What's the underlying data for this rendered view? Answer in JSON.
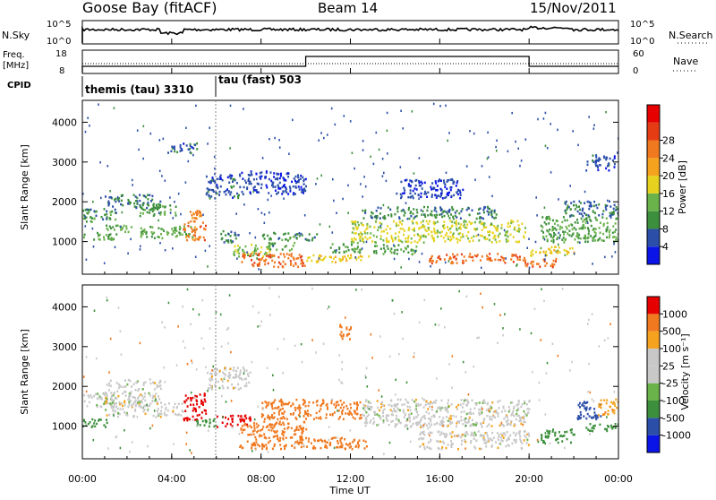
{
  "header": {
    "station": "Goose Bay (fitACF)",
    "beam": "Beam 14",
    "date": "15/Nov/2011"
  },
  "time_axis": {
    "label": "Time UT",
    "ticks": [
      "00:00",
      "04:00",
      "08:00",
      "12:00",
      "16:00",
      "20:00",
      "00:00"
    ],
    "range_hours": [
      0,
      24
    ]
  },
  "noise_panel": {
    "left_label": "N.Sky",
    "right_label": "N.Search",
    "left_ticks": [
      "10^5",
      "10^0"
    ],
    "right_ticks": [
      "10^5",
      "10^0"
    ]
  },
  "freq_panel": {
    "left_label_1": "Freq.",
    "left_label_2": "[MHz]",
    "left_ticks": [
      "18",
      "8"
    ],
    "right_label": "Nave",
    "right_ticks": [
      "60",
      "0"
    ]
  },
  "cpid": {
    "label": "CPID",
    "programs": [
      {
        "name": "themis (tau) 3310",
        "start_hour": 0
      },
      {
        "name": "tau (fast) 503",
        "start_hour": 6
      }
    ]
  },
  "colors": {
    "power": [
      "#0a14e6",
      "#2b4fa8",
      "#3c8f3c",
      "#6ab34a",
      "#e6d21e",
      "#f5a21e",
      "#f0781e",
      "#e63c14",
      "#e60000"
    ],
    "velocity": [
      "#e60000",
      "#f0781e",
      "#f5a21e",
      "#c8c8c8",
      "#c8c8c8",
      "#6ab34a",
      "#3c8f3c",
      "#2b4fa8",
      "#0a14e6"
    ]
  },
  "chart_data": [
    {
      "type": "heatmap",
      "name": "power",
      "ylabel": "Slant Range [km]",
      "yticks": [
        "1000",
        "2000",
        "3000",
        "4000"
      ],
      "ylim_km": [
        180,
        4550
      ],
      "colorbar": {
        "label": "Power [dB]",
        "ticks": [
          "4",
          "8",
          "12",
          "16",
          "20",
          "24",
          "28"
        ],
        "range": [
          0,
          32
        ]
      },
      "regions": [
        {
          "x": [
            0.0,
            1.5
          ],
          "y": [
            1500,
            1850
          ],
          "value": 10
        },
        {
          "x": [
            0.0,
            1.5
          ],
          "y": [
            1050,
            1250
          ],
          "value": 11
        },
        {
          "x": [
            1.0,
            2.2
          ],
          "y": [
            1250,
            1450
          ],
          "value": 13
        },
        {
          "x": [
            1.0,
            3.5
          ],
          "y": [
            1850,
            2200
          ],
          "value": 8
        },
        {
          "x": [
            2.5,
            4.2
          ],
          "y": [
            1650,
            1950
          ],
          "value": 11
        },
        {
          "x": [
            2.5,
            5.0
          ],
          "y": [
            1100,
            1400
          ],
          "value": 12
        },
        {
          "x": [
            4.5,
            5.5
          ],
          "y": [
            1050,
            1550
          ],
          "value": 26
        },
        {
          "x": [
            4.8,
            5.3
          ],
          "y": [
            1600,
            1800
          ],
          "value": 24
        },
        {
          "x": [
            3.8,
            5.2
          ],
          "y": [
            3250,
            3500
          ],
          "value": 6
        },
        {
          "x": [
            5.5,
            7.0
          ],
          "y": [
            2100,
            2700
          ],
          "value": 6
        },
        {
          "x": [
            6.0,
            7.0
          ],
          "y": [
            1000,
            1300
          ],
          "value": 9
        },
        {
          "x": [
            6.7,
            8.5
          ],
          "y": [
            650,
            950
          ],
          "value": 14
        },
        {
          "x": [
            7.0,
            10.0
          ],
          "y": [
            380,
            720
          ],
          "value": 27
        },
        {
          "x": [
            8.2,
            9.5
          ],
          "y": [
            800,
            1000
          ],
          "value": 13
        },
        {
          "x": [
            8.0,
            10.5
          ],
          "y": [
            1050,
            1250
          ],
          "value": 10
        },
        {
          "x": [
            10.0,
            12.8
          ],
          "y": [
            500,
            700
          ],
          "value": 19
        },
        {
          "x": [
            11.0,
            12.5
          ],
          "y": [
            750,
            1000
          ],
          "value": 11
        },
        {
          "x": [
            12.0,
            19.8
          ],
          "y": [
            1000,
            1550
          ],
          "value": 17
        },
        {
          "x": [
            12.5,
            18.5
          ],
          "y": [
            1600,
            1900
          ],
          "value": 9
        },
        {
          "x": [
            15.5,
            19.8
          ],
          "y": [
            480,
            720
          ],
          "value": 27
        },
        {
          "x": [
            13.0,
            15.0
          ],
          "y": [
            700,
            950
          ],
          "value": 12
        },
        {
          "x": [
            19.8,
            21.2
          ],
          "y": [
            380,
            600
          ],
          "value": 27
        },
        {
          "x": [
            20.0,
            22.0
          ],
          "y": [
            650,
            900
          ],
          "value": 18
        },
        {
          "x": [
            20.5,
            24.0
          ],
          "y": [
            1000,
            1650
          ],
          "value": 12
        },
        {
          "x": [
            21.5,
            24.0
          ],
          "y": [
            1650,
            2050
          ],
          "value": 8
        },
        {
          "x": [
            7.0,
            10.0
          ],
          "y": [
            2200,
            2800
          ],
          "value": 5
        },
        {
          "x": [
            14.0,
            17.0
          ],
          "y": [
            2100,
            2600
          ],
          "value": 5
        },
        {
          "x": [
            22.5,
            23.8
          ],
          "y": [
            2800,
            3200
          ],
          "value": 6
        }
      ]
    },
    {
      "type": "heatmap",
      "name": "velocity",
      "ylabel": "Slant Range [km]",
      "yticks": [
        "1000",
        "2000",
        "3000",
        "4000"
      ],
      "ylim_km": [
        180,
        4550
      ],
      "colorbar": {
        "label": "Velocity [m s⁻¹]",
        "ticks": [
          "1000",
          "500",
          "100",
          "25",
          "-25",
          "-100",
          "-500",
          "-1000"
        ],
        "range": [
          -1200,
          1200
        ]
      },
      "regions": [
        {
          "x": [
            0.0,
            1.5
          ],
          "y": [
            1500,
            1850
          ],
          "value": 10
        },
        {
          "x": [
            0.0,
            1.2
          ],
          "y": [
            1000,
            1200
          ],
          "value": 150
        },
        {
          "x": [
            1.0,
            3.5
          ],
          "y": [
            1250,
            2200
          ],
          "value": 0
        },
        {
          "x": [
            3.5,
            4.5
          ],
          "y": [
            1300,
            1600
          ],
          "value": 0
        },
        {
          "x": [
            4.5,
            5.5
          ],
          "y": [
            1150,
            1850
          ],
          "value": -900
        },
        {
          "x": [
            5.0,
            6.0
          ],
          "y": [
            1000,
            1200
          ],
          "value": 200
        },
        {
          "x": [
            5.5,
            7.5
          ],
          "y": [
            1950,
            2500
          ],
          "value": 0
        },
        {
          "x": [
            6.0,
            7.5
          ],
          "y": [
            1000,
            1300
          ],
          "value": -700
        },
        {
          "x": [
            7.0,
            10.0
          ],
          "y": [
            450,
            1150
          ],
          "value": -300
        },
        {
          "x": [
            8.0,
            12.5
          ],
          "y": [
            1200,
            1700
          ],
          "value": -300
        },
        {
          "x": [
            10.0,
            12.8
          ],
          "y": [
            450,
            750
          ],
          "value": -300
        },
        {
          "x": [
            11.5,
            12.0
          ],
          "y": [
            3200,
            3600
          ],
          "value": -300
        },
        {
          "x": [
            12.5,
            20.0
          ],
          "y": [
            1000,
            1700
          ],
          "value": 0
        },
        {
          "x": [
            15.0,
            20.0
          ],
          "y": [
            450,
            900
          ],
          "value": 0
        },
        {
          "x": [
            20.5,
            22.0
          ],
          "y": [
            600,
            950
          ],
          "value": 150
        },
        {
          "x": [
            22.0,
            23.2
          ],
          "y": [
            1200,
            1650
          ],
          "value": 600
        },
        {
          "x": [
            23.0,
            24.0
          ],
          "y": [
            1300,
            1700
          ],
          "value": -80
        },
        {
          "x": [
            22.5,
            24.0
          ],
          "y": [
            900,
            1100
          ],
          "value": 150
        }
      ]
    }
  ]
}
